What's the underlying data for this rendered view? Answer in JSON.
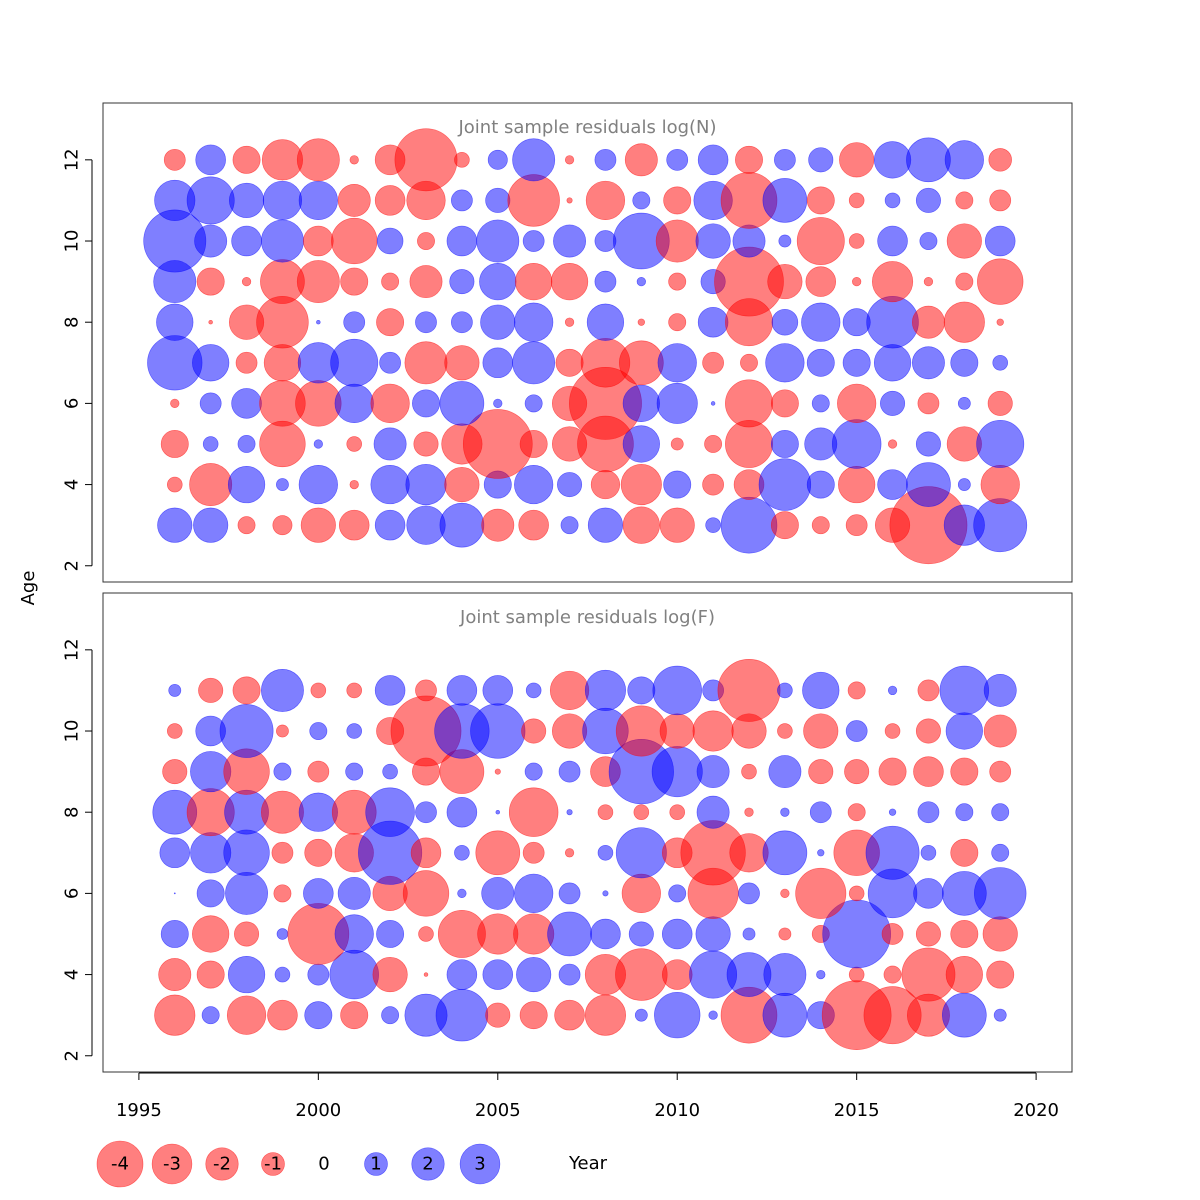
{
  "chart_data": {
    "type": "scatter",
    "subtype": "bubble",
    "xlabel": "Year",
    "ylabel": "Age",
    "xlim": [
      1994,
      2021
    ],
    "ylim": [
      1.6,
      13.4
    ],
    "x_ticks": [
      1995,
      2000,
      2005,
      2010,
      2015,
      2020
    ],
    "y_ticks": [
      2,
      4,
      6,
      8,
      10,
      12
    ],
    "colors": {
      "negative": "#ff0000",
      "positive": "#0000ff",
      "opacity": 0.5
    },
    "years": [
      1996,
      1997,
      1998,
      1999,
      2000,
      2001,
      2002,
      2003,
      2004,
      2005,
      2006,
      2007,
      2008,
      2009,
      2010,
      2011,
      2012,
      2013,
      2014,
      2015,
      2016,
      2017,
      2018,
      2019
    ],
    "legend": {
      "values": [
        -4,
        -3,
        -2,
        -1,
        0,
        1,
        2,
        3
      ],
      "labels": [
        "-4",
        "-3",
        "-2",
        "-1",
        "0",
        "1",
        "2",
        "3"
      ],
      "position": "bottom-left"
    },
    "panels": [
      {
        "title": "Joint sample residuals log(N)",
        "ages": [
          3,
          4,
          5,
          6,
          7,
          8,
          9,
          10,
          11,
          12
        ],
        "residuals": [
          [
            0.8,
            0.8,
            -0.2,
            -0.25,
            -0.8,
            -0.6,
            0.6,
            1.0,
            1.3,
            -0.7,
            -0.6,
            0.2,
            0.8,
            -0.9,
            -0.8,
            0.15,
            2.1,
            -0.5,
            -0.2,
            -0.3,
            -0.8,
            -4.0,
            1.1,
            1.9
          ],
          [
            -0.15,
            -1.2,
            0.9,
            0.1,
            1.0,
            -0.05,
            1.0,
            1.1,
            -0.8,
            0.5,
            1.0,
            0.4,
            -0.55,
            -1.1,
            0.5,
            -0.3,
            -0.6,
            1.8,
            0.5,
            -0.9,
            0.6,
            1.3,
            0.1,
            -1.0
          ],
          [
            -0.5,
            0.15,
            0.2,
            -1.4,
            0.05,
            -0.15,
            0.7,
            -0.4,
            -1.1,
            -3.2,
            -0.5,
            -0.8,
            -2.1,
            0.9,
            -0.1,
            -0.2,
            -1.5,
            0.5,
            0.7,
            1.6,
            -0.05,
            0.4,
            -0.8,
            1.5
          ],
          [
            -0.05,
            0.3,
            0.6,
            -1.4,
            -1.4,
            1.0,
            -1.0,
            0.5,
            1.3,
            0.05,
            0.2,
            -0.8,
            -3.5,
            0.9,
            1.1,
            0.01,
            -1.5,
            -0.5,
            0.2,
            -1.0,
            0.4,
            -0.3,
            0.1,
            -0.4
          ],
          [
            2.0,
            0.9,
            -0.3,
            -0.9,
            1.1,
            1.5,
            0.3,
            -1.2,
            -0.8,
            0.6,
            1.2,
            -0.5,
            -1.6,
            -1.3,
            1.0,
            -0.3,
            -0.2,
            1.0,
            0.5,
            0.5,
            0.9,
            0.7,
            0.5,
            0.15
          ],
          [
            0.9,
            -0.01,
            -0.8,
            -1.8,
            0.01,
            0.3,
            -0.5,
            0.3,
            0.3,
            0.8,
            1.0,
            -0.05,
            0.9,
            -0.03,
            -0.2,
            0.6,
            -1.5,
            0.45,
            1.0,
            0.5,
            1.8,
            -0.7,
            -1.1,
            -0.03
          ],
          [
            1.2,
            -0.5,
            -0.05,
            -1.3,
            -1.2,
            -0.5,
            -0.2,
            -0.7,
            0.4,
            0.9,
            -0.9,
            -0.9,
            0.3,
            0.05,
            -0.2,
            0.4,
            -3.2,
            -0.8,
            -0.6,
            -0.05,
            -1.1,
            -0.05,
            -0.2,
            -1.4
          ],
          [
            2.6,
            0.7,
            0.6,
            1.2,
            -0.6,
            -1.4,
            0.45,
            -0.2,
            0.6,
            1.2,
            0.3,
            0.7,
            0.3,
            2.1,
            -1.2,
            0.8,
            0.7,
            0.1,
            -1.5,
            -0.15,
            0.6,
            0.2,
            -0.8,
            0.6
          ],
          [
            1.1,
            1.5,
            0.8,
            1.0,
            1.0,
            -0.7,
            -0.6,
            -1.0,
            0.3,
            0.4,
            -1.8,
            -0.02,
            -1.0,
            0.2,
            -0.5,
            1.0,
            -2.1,
            1.3,
            -0.5,
            -0.15,
            0.15,
            0.4,
            -0.2,
            -0.3
          ],
          [
            -0.3,
            0.6,
            -0.5,
            -1.1,
            -1.2,
            -0.05,
            -0.6,
            -2.6,
            -0.15,
            0.25,
            1.2,
            -0.05,
            0.3,
            -0.7,
            0.3,
            0.6,
            -0.5,
            0.3,
            0.4,
            -0.8,
            0.9,
            1.3,
            1.0,
            -0.35
          ]
        ]
      },
      {
        "title": "Joint sample residuals log(F)",
        "ages": [
          3,
          4,
          5,
          6,
          7,
          8,
          9,
          10,
          11
        ],
        "residuals": [
          [
            -1.1,
            0.2,
            -1.0,
            -0.6,
            0.5,
            -0.5,
            0.2,
            1.2,
            1.8,
            -0.4,
            -0.5,
            -0.6,
            -1.1,
            0.1,
            1.4,
            0.05,
            -2.1,
            1.3,
            0.5,
            -3.2,
            -2.2,
            -1.2,
            1.3,
            0.1
          ],
          [
            -0.7,
            -0.5,
            0.9,
            0.15,
            0.3,
            1.6,
            -0.8,
            -0.01,
            0.6,
            0.6,
            0.8,
            0.3,
            -1.1,
            -1.8,
            -0.6,
            1.5,
            1.3,
            1.2,
            0.05,
            -0.15,
            -0.2,
            -1.9,
            -0.9,
            -0.5
          ],
          [
            0.5,
            -0.9,
            -0.4,
            0.08,
            -2.5,
            1.0,
            0.5,
            -0.15,
            -1.5,
            -1.1,
            -1.1,
            1.3,
            0.6,
            0.4,
            0.6,
            0.8,
            0.1,
            -0.1,
            -0.2,
            3.1,
            -0.3,
            -0.4,
            -0.5,
            -0.8
          ],
          [
            0.0,
            0.5,
            1.2,
            -0.2,
            0.6,
            0.7,
            -0.8,
            -1.4,
            0.05,
            0.7,
            1.0,
            0.3,
            0.02,
            -1.0,
            0.2,
            -1.7,
            0.3,
            -0.05,
            -1.7,
            -0.15,
            1.6,
            0.6,
            1.3,
            1.8
          ],
          [
            0.6,
            1.1,
            1.4,
            -0.3,
            -0.5,
            -1.0,
            2.7,
            -0.6,
            0.15,
            -1.3,
            -0.3,
            -0.05,
            0.15,
            1.7,
            -0.6,
            -2.8,
            -1.0,
            1.3,
            0.03,
            -1.4,
            1.9,
            0.15,
            -0.5,
            0.2
          ],
          [
            1.3,
            -1.5,
            1.3,
            -1.2,
            1.0,
            -1.3,
            1.6,
            0.3,
            0.6,
            0.01,
            -1.6,
            0.02,
            -0.15,
            -0.15,
            -0.15,
            0.7,
            -0.05,
            0.05,
            0.3,
            -0.2,
            0.03,
            0.3,
            0.2,
            0.2
          ],
          [
            -0.4,
            1.1,
            -1.4,
            0.2,
            -0.3,
            0.2,
            0.15,
            -0.5,
            -1.3,
            -0.02,
            0.2,
            0.3,
            -0.6,
            2.8,
            1.7,
            0.7,
            -0.15,
            0.7,
            -0.4,
            -0.4,
            -0.5,
            -0.6,
            -0.5,
            -0.3
          ],
          [
            -0.15,
            0.6,
            1.9,
            -0.1,
            0.2,
            0.15,
            -0.5,
            -3.3,
            2.0,
            2.0,
            -0.4,
            -0.8,
            1.4,
            -1.7,
            -0.8,
            -1.1,
            -0.8,
            -0.15,
            -0.8,
            0.3,
            -0.15,
            -0.4,
            0.9,
            -0.7
          ],
          [
            0.1,
            -0.4,
            -0.5,
            1.2,
            -0.15,
            -0.15,
            0.6,
            -0.3,
            0.6,
            0.6,
            0.15,
            -1.0,
            1.1,
            0.5,
            1.6,
            0.3,
            -2.6,
            0.15,
            0.9,
            -0.2,
            0.05,
            -0.3,
            1.6,
            0.7
          ]
        ]
      }
    ]
  }
}
